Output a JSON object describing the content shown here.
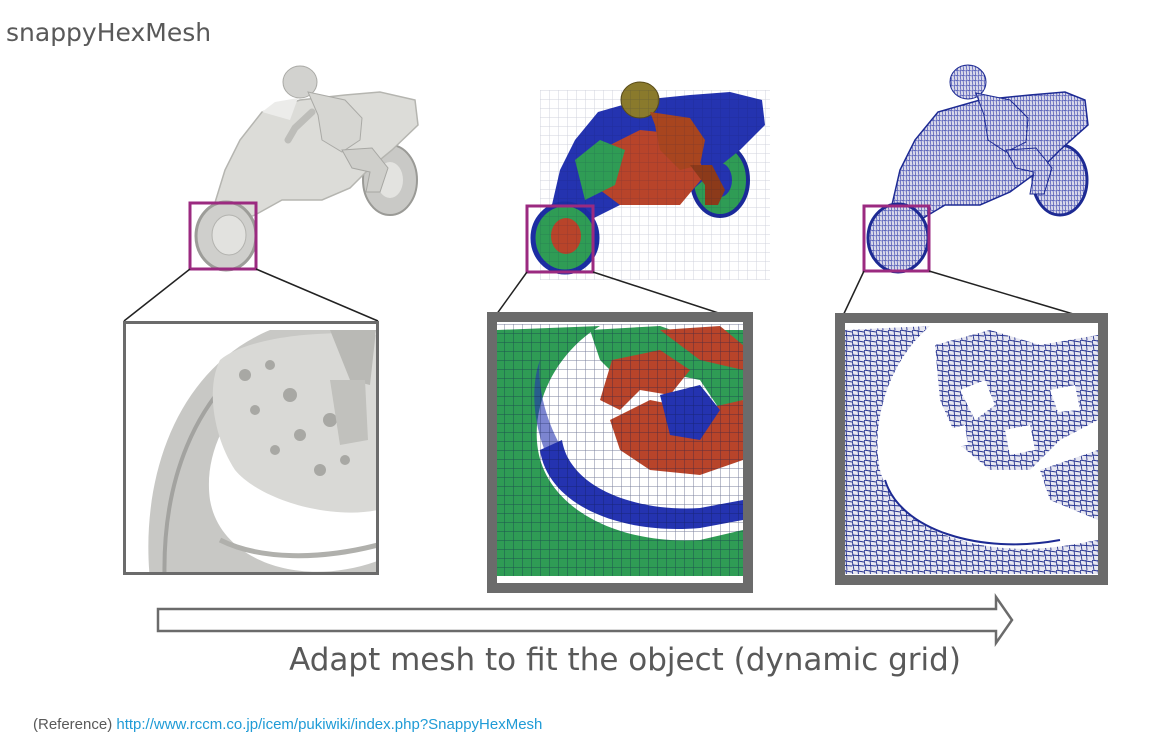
{
  "title": "snappyHexMesh",
  "caption": "Adapt mesh to fit the object (dynamic grid)",
  "reference": {
    "label": "(Reference)",
    "url": "http://www.rccm.co.jp/icem/pukiwiki/index.php?SnappyHexMesh"
  },
  "panels": [
    {
      "name": "surface-model",
      "style": "shaded surface"
    },
    {
      "name": "hex-mesh",
      "style": "hexahedral cells"
    },
    {
      "name": "snapped-mesh",
      "style": "snapped polyhedral mesh"
    }
  ],
  "colors": {
    "highlight": "#9b2a80",
    "frame": "#6b6b6b",
    "surface": "#d9d9d6",
    "mesh_red": "#b8442a",
    "mesh_green": "#2f9c55",
    "mesh_blue": "#2433b0",
    "wire": "#23308f",
    "link": "#1f9bd6"
  }
}
